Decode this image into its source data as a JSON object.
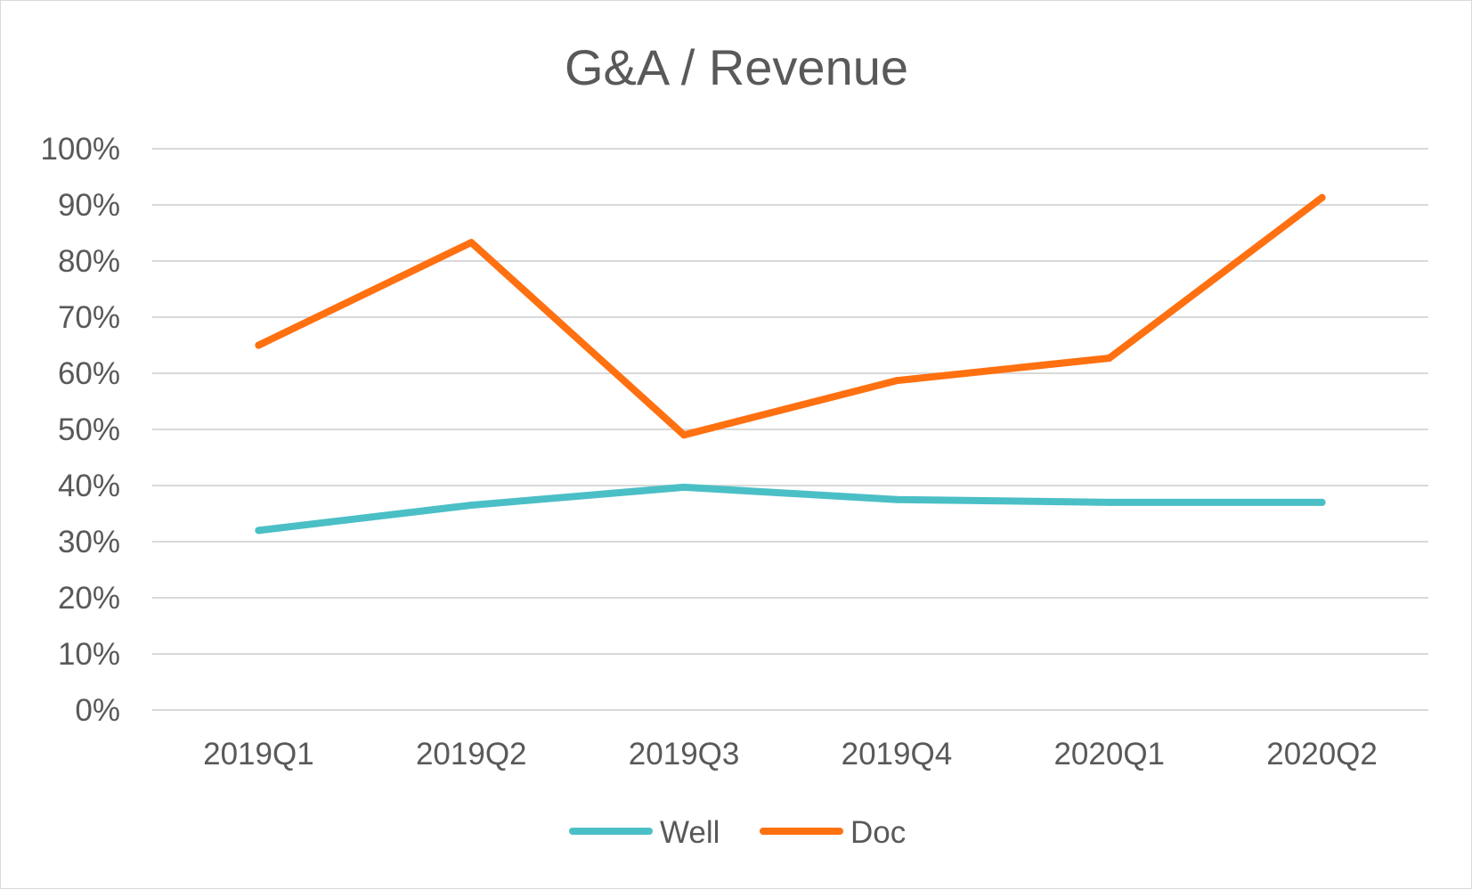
{
  "chart_data": {
    "type": "line",
    "title": "G&A / Revenue",
    "xlabel": "",
    "ylabel": "",
    "categories": [
      "2019Q1",
      "2019Q2",
      "2019Q3",
      "2019Q4",
      "2020Q1",
      "2020Q2"
    ],
    "y_ticks": [
      "0%",
      "10%",
      "20%",
      "30%",
      "40%",
      "50%",
      "60%",
      "70%",
      "80%",
      "90%",
      "100%"
    ],
    "ylim": [
      0,
      100
    ],
    "y_unit": "%",
    "grid": true,
    "legend_position": "bottom",
    "series": [
      {
        "name": "Well",
        "color": "#4bbfc6",
        "values": [
          32,
          36.5,
          39.7,
          37.5,
          37,
          37
        ]
      },
      {
        "name": "Doc",
        "color": "#ff7011",
        "values": [
          65,
          83.3,
          49,
          58.7,
          62.7,
          91.3
        ]
      }
    ]
  }
}
